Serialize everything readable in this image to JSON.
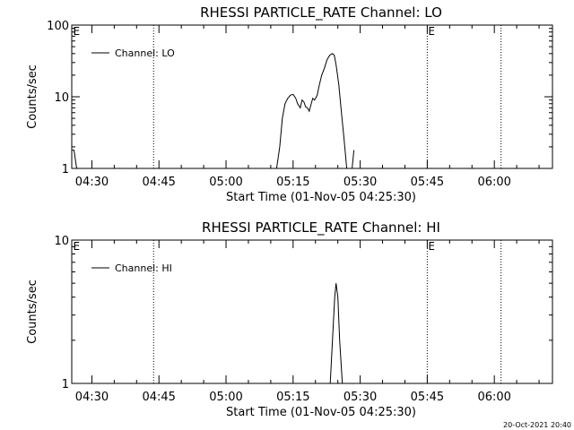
{
  "timestamp": "20-Oct-2021 20:40",
  "chart_data": [
    {
      "type": "line",
      "title": "RHESSI PARTICLE_RATE Channel: LO",
      "xlabel": "Start Time (01-Nov-05 04:25:30)",
      "ylabel": "Counts/sec",
      "y_scale": "log",
      "ylim": [
        1,
        100
      ],
      "xlim_minutes": [
        265.5,
        373
      ],
      "x_ticks": [
        {
          "value": 270,
          "label": "04:30"
        },
        {
          "value": 285,
          "label": "04:45"
        },
        {
          "value": 300,
          "label": "05:00"
        },
        {
          "value": 315,
          "label": "05:15"
        },
        {
          "value": 330,
          "label": "05:30"
        },
        {
          "value": 345,
          "label": "05:45"
        },
        {
          "value": 360,
          "label": "06:00"
        }
      ],
      "y_ticks": [
        {
          "value": 1,
          "label": "1"
        },
        {
          "value": 10,
          "label": "10"
        },
        {
          "value": 100,
          "label": "100"
        }
      ],
      "vlines": [
        283.8,
        345,
        361.5
      ],
      "markers": [
        {
          "x": 265.8,
          "label": "E"
        },
        {
          "x": 345.2,
          "label": "E"
        }
      ],
      "legend": {
        "label": "Channel: LO",
        "position": "top-left"
      },
      "series": [
        {
          "segments": [
            [
              [
                265.5,
                1.8
              ],
              [
                266.0,
                1.8
              ],
              [
                266.6,
                1.0
              ]
            ],
            [
              [
                311.3,
                1.0
              ],
              [
                312.0,
                2.0
              ],
              [
                312.6,
                5.0
              ],
              [
                313.2,
                8.0
              ],
              [
                313.8,
                9.5
              ],
              [
                314.4,
                10.5
              ],
              [
                315.0,
                10.8
              ],
              [
                315.6,
                9.5
              ],
              [
                316.0,
                8.0
              ],
              [
                316.6,
                7.0
              ],
              [
                317.0,
                9.0
              ],
              [
                317.4,
                8.5
              ],
              [
                317.8,
                7.2
              ],
              [
                318.2,
                7.0
              ],
              [
                318.6,
                6.3
              ],
              [
                319.0,
                7.8
              ],
              [
                319.4,
                9.5
              ],
              [
                319.8,
                9.0
              ],
              [
                320.4,
                10.5
              ],
              [
                320.8,
                14.0
              ],
              [
                321.4,
                20.0
              ],
              [
                322.0,
                25.0
              ],
              [
                322.6,
                33.0
              ],
              [
                323.2,
                38.0
              ],
              [
                323.8,
                40.0
              ],
              [
                324.2,
                38.0
              ],
              [
                324.6,
                28.0
              ],
              [
                325.2,
                15.0
              ],
              [
                325.8,
                6.0
              ],
              [
                326.4,
                2.5
              ],
              [
                327.0,
                1.0
              ]
            ],
            [
              [
                328.2,
                1.0
              ],
              [
                328.6,
                1.8
              ]
            ]
          ]
        }
      ]
    },
    {
      "type": "line",
      "title": "RHESSI PARTICLE_RATE Channel: HI",
      "xlabel": "Start Time (01-Nov-05 04:25:30)",
      "ylabel": "Counts/sec",
      "y_scale": "log",
      "ylim": [
        1,
        10
      ],
      "xlim_minutes": [
        265.5,
        373
      ],
      "x_ticks": [
        {
          "value": 270,
          "label": "04:30"
        },
        {
          "value": 285,
          "label": "04:45"
        },
        {
          "value": 300,
          "label": "05:00"
        },
        {
          "value": 315,
          "label": "05:15"
        },
        {
          "value": 330,
          "label": "05:30"
        },
        {
          "value": 345,
          "label": "05:45"
        },
        {
          "value": 360,
          "label": "06:00"
        }
      ],
      "y_ticks": [
        {
          "value": 1,
          "label": "1"
        },
        {
          "value": 10,
          "label": "10"
        }
      ],
      "vlines": [
        283.8,
        345,
        361.5
      ],
      "markers": [
        {
          "x": 265.8,
          "label": "E"
        },
        {
          "x": 345.2,
          "label": "E"
        }
      ],
      "legend": {
        "label": "Channel: HI",
        "position": "top-left"
      },
      "series": [
        {
          "segments": [
            [
              [
                323.3,
                1.0
              ],
              [
                323.8,
                2.0
              ],
              [
                324.3,
                4.0
              ],
              [
                324.6,
                5.0
              ],
              [
                325.0,
                4.0
              ],
              [
                325.4,
                2.0
              ],
              [
                326.0,
                1.0
              ]
            ]
          ]
        }
      ]
    }
  ]
}
